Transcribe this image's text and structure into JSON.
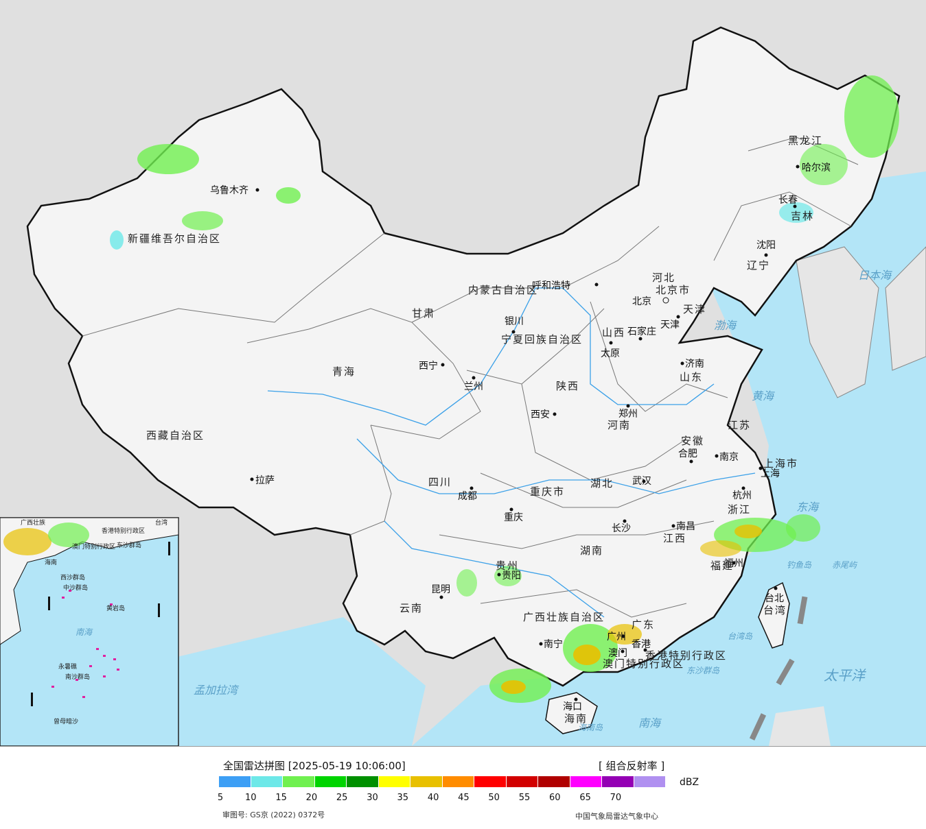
{
  "map": {
    "cities": [
      {
        "name": "乌鲁木齐"
      },
      {
        "name": "拉萨"
      },
      {
        "name": "西宁"
      },
      {
        "name": "兰州"
      },
      {
        "name": "银川"
      },
      {
        "name": "呼和浩特"
      },
      {
        "name": "北京"
      },
      {
        "name": "天津"
      },
      {
        "name": "石家庄"
      },
      {
        "name": "太原"
      },
      {
        "name": "济南"
      },
      {
        "name": "郑州"
      },
      {
        "name": "西安"
      },
      {
        "name": "成都"
      },
      {
        "name": "重庆"
      },
      {
        "name": "武汉"
      },
      {
        "name": "合肥"
      },
      {
        "name": "南京"
      },
      {
        "name": "上海"
      },
      {
        "name": "杭州"
      },
      {
        "name": "南昌"
      },
      {
        "name": "长沙"
      },
      {
        "name": "贵阳"
      },
      {
        "name": "昆明"
      },
      {
        "name": "南宁"
      },
      {
        "name": "广州"
      },
      {
        "name": "福州"
      },
      {
        "name": "台北"
      },
      {
        "name": "海口"
      },
      {
        "name": "沈阳"
      },
      {
        "name": "长春"
      },
      {
        "name": "哈尔滨"
      },
      {
        "name": "澳门"
      },
      {
        "name": "香港"
      }
    ],
    "provinces": [
      "新疆维吾尔自治区",
      "西藏自治区",
      "青海",
      "甘肃",
      "内蒙古自治区",
      "黑龙江",
      "吉林",
      "辽宁",
      "河北",
      "山西",
      "山东",
      "河南",
      "陕西",
      "四川",
      "重庆市",
      "湖北",
      "安徽",
      "江苏",
      "上海市",
      "浙江",
      "江西",
      "湖南",
      "贵州",
      "云南",
      "广西壮族自治区",
      "广东",
      "福建",
      "台湾",
      "海南",
      "宁夏回族自治区",
      "香港特别行政区",
      "澳门特别行政区",
      "北京市",
      "天津"
    ],
    "seas": [
      "日本海",
      "渤海",
      "黄海",
      "东海",
      "太平洋",
      "南海",
      "孟加拉湾",
      "南海",
      "台湾岛",
      "海南岛",
      "东沙群岛",
      "钓鱼岛",
      "赤尾屿"
    ],
    "inset": {
      "labels": [
        "南海",
        "中沙群岛",
        "黄岩岛",
        "永暑礁",
        "南沙群岛",
        "曾母暗沙",
        "西沙群岛",
        "东沙群岛",
        "海南",
        "广西壮族",
        "台湾",
        "香港特别行政区",
        "澳门特别行政区"
      ]
    }
  },
  "legend": {
    "title": "全国雷达拼图 [2025-05-19 10:06:00]",
    "product": "[ 组合反射率 ]",
    "unit": "dBZ",
    "colors": [
      "#3d9ff5",
      "#6de8e8",
      "#70f050",
      "#00d400",
      "#009000",
      "#ffff00",
      "#e8c000",
      "#ff8c00",
      "#ff0000",
      "#d20000",
      "#b00000",
      "#ff00ff",
      "#9400b4",
      "#b090f0"
    ],
    "ticks": [
      "5",
      "10",
      "15",
      "20",
      "25",
      "30",
      "35",
      "40",
      "45",
      "50",
      "55",
      "60",
      "65",
      "70"
    ],
    "approval": "审图号: GS京 (2022) 0372号",
    "credit": "中国气象局雷达气象中心"
  }
}
